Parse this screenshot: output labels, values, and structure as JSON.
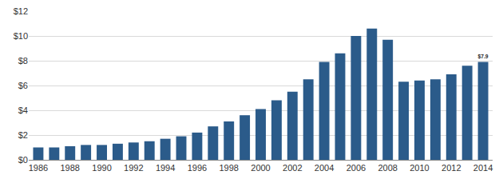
{
  "chart_data": {
    "type": "bar",
    "categories": [
      "1986",
      null,
      "1988",
      null,
      "1990",
      null,
      "1992",
      null,
      "1994",
      null,
      "1996",
      null,
      "1998",
      null,
      "2000",
      null,
      "2002",
      null,
      "2004",
      null,
      "2006",
      null,
      "2008",
      null,
      "2010",
      null,
      "2012",
      null,
      "2014"
    ],
    "values": [
      1.0,
      1.0,
      1.1,
      1.2,
      1.2,
      1.3,
      1.4,
      1.5,
      1.7,
      1.9,
      2.2,
      2.7,
      3.1,
      3.6,
      4.1,
      4.8,
      5.5,
      6.5,
      7.9,
      8.6,
      10.0,
      10.6,
      9.7,
      6.3,
      6.4,
      6.5,
      6.9,
      7.6,
      7.9
    ],
    "value_labels": [
      null,
      null,
      null,
      null,
      null,
      null,
      null,
      null,
      null,
      null,
      null,
      null,
      null,
      null,
      null,
      null,
      null,
      null,
      null,
      null,
      null,
      null,
      null,
      null,
      null,
      null,
      null,
      null,
      "$7.9"
    ],
    "color": "#2b5b8a",
    "ylim": [
      0,
      12
    ],
    "yticks": [
      {
        "value": 0,
        "label": "$0"
      },
      {
        "value": 2,
        "label": "$2"
      },
      {
        "value": 4,
        "label": "$4"
      },
      {
        "value": 6,
        "label": "$6"
      },
      {
        "value": 8,
        "label": "$8"
      },
      {
        "value": 10,
        "label": "$10"
      },
      {
        "value": 12,
        "label": "$12"
      }
    ],
    "grid": true
  }
}
